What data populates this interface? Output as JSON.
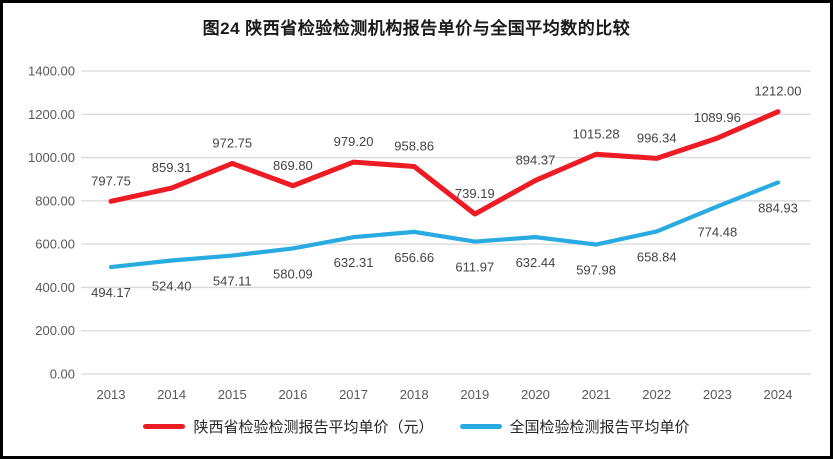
{
  "chart_data": {
    "type": "line",
    "title": "图24 陕西省检验检测机构报告单价与全国平均数的比较",
    "categories": [
      "2013",
      "2014",
      "2015",
      "2016",
      "2017",
      "2018",
      "2019",
      "2020",
      "2021",
      "2022",
      "2023",
      "2024"
    ],
    "series": [
      {
        "name": "陕西省检验检测报告平均单价（元）",
        "color": "#ed1c24",
        "label_position": "above",
        "values": [
          797.75,
          859.31,
          972.75,
          869.8,
          979.2,
          958.86,
          739.19,
          894.37,
          1015.28,
          996.34,
          1089.96,
          1212.0
        ]
      },
      {
        "name": "全国检验检测报告平均单价",
        "color": "#29abe2",
        "label_position": "below",
        "values": [
          494.17,
          524.4,
          547.11,
          580.09,
          632.31,
          656.66,
          611.97,
          632.44,
          597.98,
          658.84,
          774.48,
          884.93
        ]
      }
    ],
    "y_axis": {
      "min": 0,
      "max": 1400,
      "step": 200,
      "tick_labels": [
        "0.00",
        "200.00",
        "400.00",
        "600.00",
        "800.00",
        "1000.00",
        "1200.00",
        "1400.00"
      ]
    },
    "x_axis_label": "",
    "y_axis_label": "",
    "grid": "horizontal",
    "legend_position": "bottom",
    "data_labels_decimals": 2
  }
}
